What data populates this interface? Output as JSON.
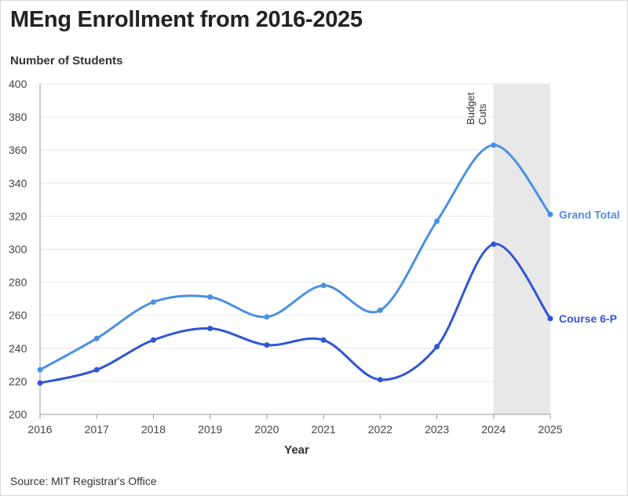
{
  "chart_data": {
    "type": "line",
    "title": "MEng Enrollment from 2016-2025",
    "ylabel": "Number of Students",
    "xlabel": "Year",
    "source": "Source: MIT Registrar's Office",
    "x": [
      2016,
      2017,
      2018,
      2019,
      2020,
      2021,
      2022,
      2023,
      2024,
      2025
    ],
    "ylim": [
      200,
      400
    ],
    "yticks": [
      200,
      220,
      240,
      260,
      280,
      300,
      320,
      340,
      360,
      380,
      400
    ],
    "grid": true,
    "series": [
      {
        "name": "Grand Total",
        "color": "#4a90e2",
        "values": [
          227,
          246,
          268,
          271,
          259,
          278,
          263,
          317,
          363,
          321
        ]
      },
      {
        "name": "Course 6-P",
        "color": "#2f55d4",
        "values": [
          219,
          227,
          245,
          252,
          242,
          245,
          221,
          241,
          303,
          258
        ]
      }
    ],
    "shaded_region": {
      "x_start": 2024,
      "x_end": 2025,
      "label": [
        "Budget",
        "Cuts"
      ],
      "color": "#e8e8e8"
    }
  }
}
